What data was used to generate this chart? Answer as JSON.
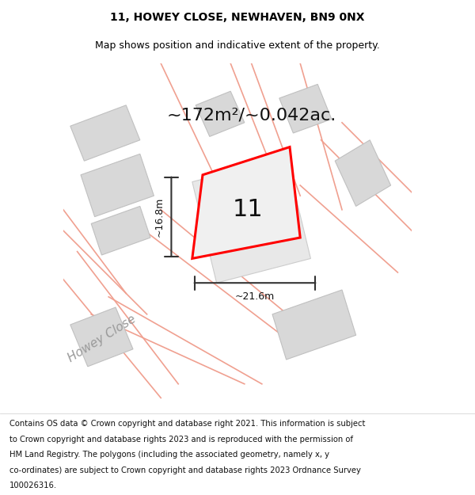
{
  "title": "11, HOWEY CLOSE, NEWHAVEN, BN9 0NX",
  "subtitle": "Map shows position and indicative extent of the property.",
  "area_label": "~172m²/~0.042ac.",
  "plot_number": "11",
  "dim_width": "~21.6m",
  "dim_height": "~16.8m",
  "street_label": "Howey Close",
  "footer_lines": [
    "Contains OS data © Crown copyright and database right 2021. This information is subject",
    "to Crown copyright and database rights 2023 and is reproduced with the permission of",
    "HM Land Registry. The polygons (including the associated geometry, namely x, y",
    "co-ordinates) are subject to Crown copyright and database rights 2023 Ordnance Survey",
    "100026316."
  ],
  "bg_color": "#ffffff",
  "building_color": "#d8d8d8",
  "building_edge": "#c0c0c0",
  "road_line_color": "#f0a090",
  "highlight_color": "#ff0000",
  "dim_line_color": "#333333",
  "title_fontsize": 10,
  "subtitle_fontsize": 9,
  "area_fontsize": 16,
  "plot_num_fontsize": 22,
  "street_fontsize": 11,
  "footer_fontsize": 7.2
}
